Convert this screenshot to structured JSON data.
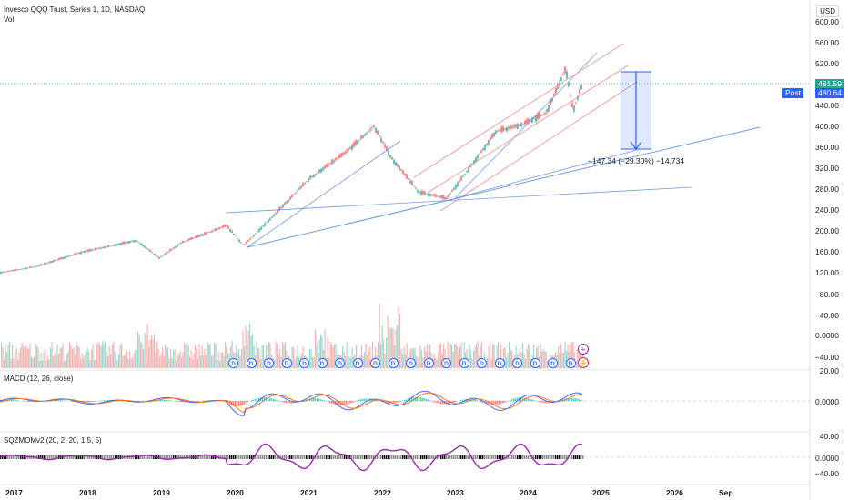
{
  "header": {
    "title": "Invesco QQQ Trust, Series 1, 1D, NASDAQ",
    "vol_label": "Vol",
    "currency": "USD"
  },
  "price_axis": {
    "ticks": [
      "600.00",
      "560.00",
      "520.00",
      "480.00",
      "440.00",
      "400.00",
      "360.00",
      "320.00",
      "280.00",
      "240.00",
      "200.00",
      "160.00",
      "120.00"
    ],
    "last_price": "481.59",
    "post_label": "Post",
    "post_price": "480.64"
  },
  "volume_axis": {
    "ticks": [
      "80.00",
      "40.00",
      "0.0000",
      "−40.00"
    ]
  },
  "macd": {
    "title": "MACD (12, 26, close)",
    "ticks": [
      "20.00",
      "0.0000"
    ]
  },
  "sqz": {
    "title": "SQZMOMv2 (20, 2, 20, 1.5, 5)",
    "ticks": [
      "40.00",
      "0.0000",
      "−40.00"
    ]
  },
  "time_axis": {
    "ticks": [
      "2017",
      "2018",
      "2019",
      "2020",
      "2021",
      "2022",
      "2023",
      "2024",
      "2025",
      "2026",
      "Sep"
    ]
  },
  "measure": {
    "label": "−147.34 (−29.30%) −14,734"
  },
  "dividend_marker": "D",
  "colors": {
    "up": "#26a69a",
    "down": "#ef5350",
    "accent": "#2962ff",
    "trendline": "#6b9be6",
    "channel": "#f28b82",
    "last_badge": "#26a69a",
    "post_badge": "#2962ff"
  },
  "chart_data": {
    "type": "candlestick",
    "ylim": [
      120,
      600
    ],
    "series": [
      {
        "name": "",
        "x": [
          "2017",
          "2018",
          "2019",
          "2020",
          "2021",
          "2022",
          "2023",
          "2024",
          "2025"
        ],
        "values": [
          120,
          160,
          170,
          210,
          310,
          400,
          265,
          380,
          481.59
        ]
      }
    ]
  }
}
